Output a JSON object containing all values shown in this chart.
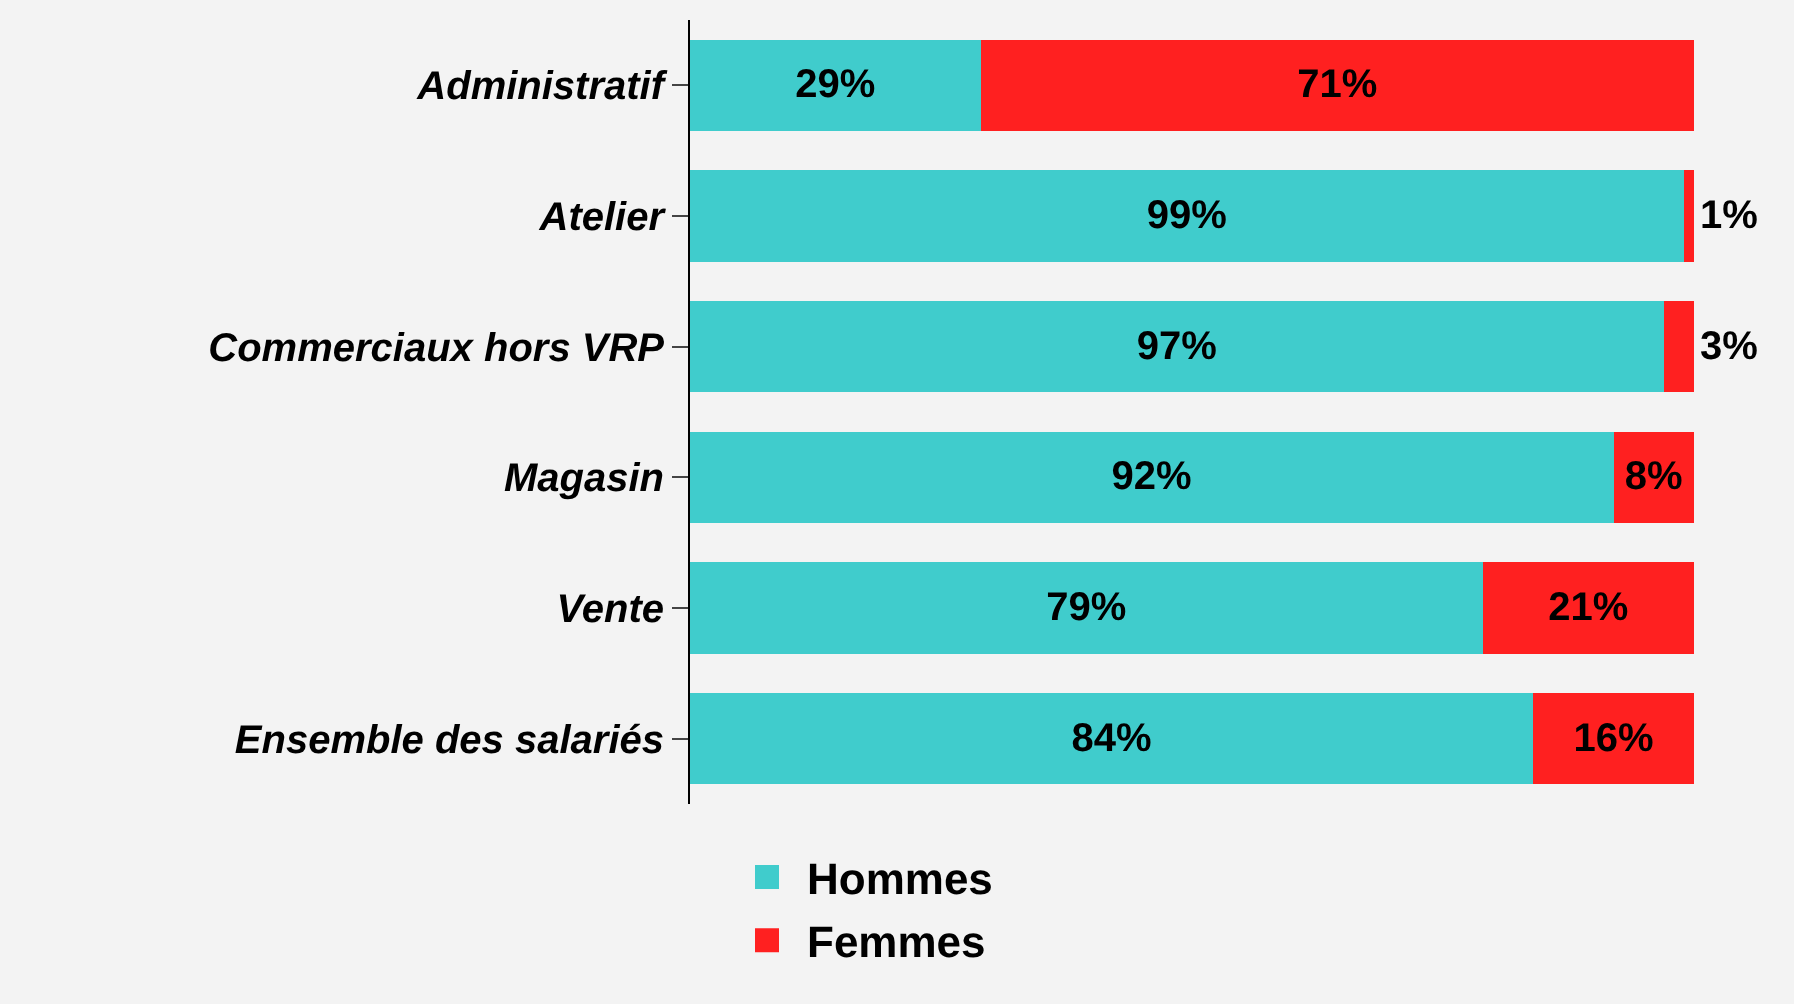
{
  "chart_data": {
    "type": "bar",
    "orientation": "horizontal",
    "stacked": true,
    "categories": [
      "Administratif",
      "Atelier",
      "Commerciaux hors VRP",
      "Magasin",
      "Vente",
      "Ensemble des salariés"
    ],
    "xlim": [
      0,
      100
    ],
    "tick_labels": "y",
    "legend": "bottom",
    "series": [
      {
        "name": "Hommes",
        "color": "#40cccc",
        "values": [
          29,
          99,
          97,
          92,
          79,
          84
        ],
        "value_labels": [
          "29%",
          "99%",
          "97%",
          "92%",
          "79%",
          "84%"
        ]
      },
      {
        "name": "Femmes",
        "color": "#ff2020",
        "values": [
          71,
          1,
          3,
          8,
          21,
          16
        ],
        "value_labels": [
          "71%",
          "1%",
          "3%",
          "8%",
          "21%",
          "16%"
        ]
      }
    ]
  }
}
